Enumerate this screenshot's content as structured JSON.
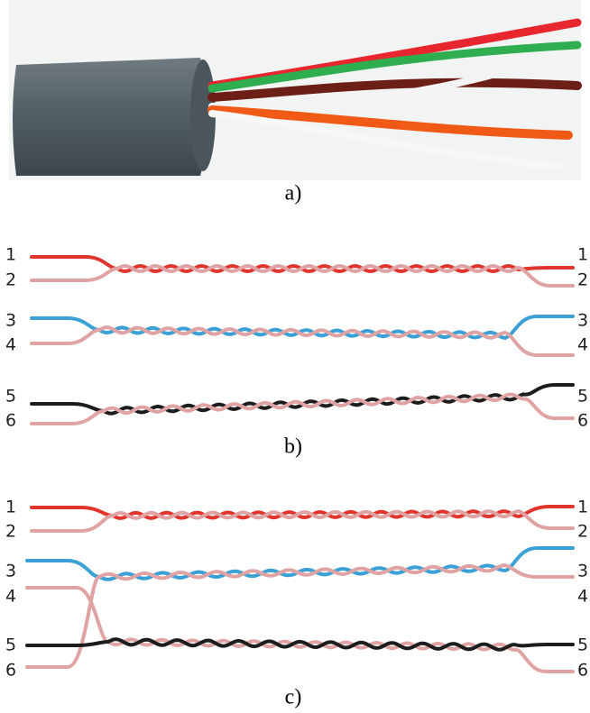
{
  "panels": [
    {
      "label": "a)"
    },
    {
      "label": "b)",
      "left_numbers": [
        "1",
        "2",
        "3",
        "4",
        "5",
        "6"
      ],
      "right_numbers": [
        "1",
        "2",
        "3",
        "4",
        "5",
        "6"
      ]
    },
    {
      "label": "c)",
      "left_numbers": [
        "1",
        "2",
        "3",
        "4",
        "5",
        "6"
      ],
      "right_numbers": [
        "1",
        "2",
        "3",
        "4",
        "5",
        "6"
      ]
    }
  ]
}
